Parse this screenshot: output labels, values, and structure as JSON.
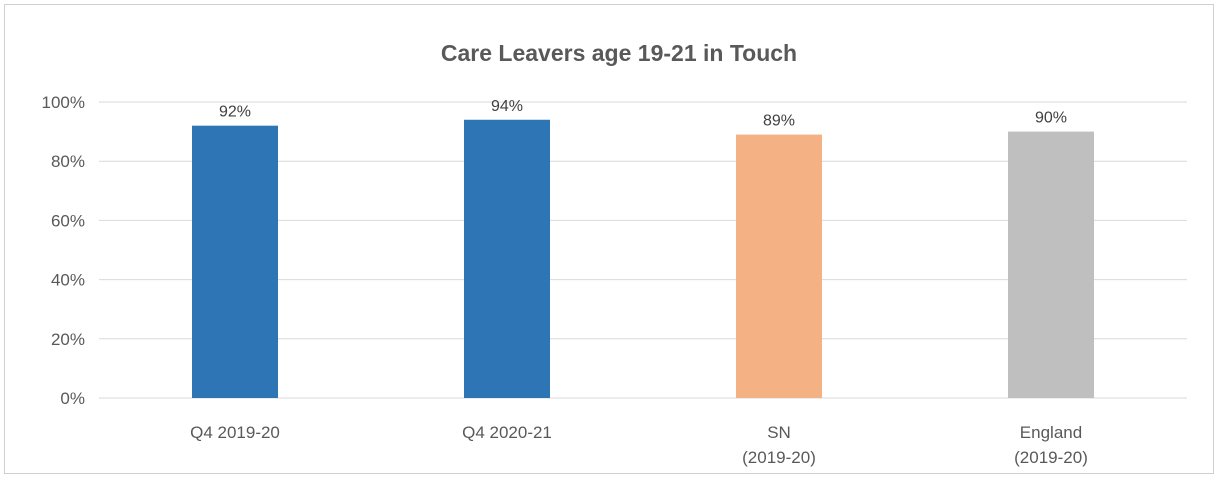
{
  "chart_data": {
    "type": "bar",
    "title": "Care Leavers age 19-21 in Touch",
    "categories": [
      [
        "Q4 2019-20"
      ],
      [
        "Q4 2020-21"
      ],
      [
        "SN",
        "(2019-20)"
      ],
      [
        "England",
        "(2019-20)"
      ]
    ],
    "values": [
      92,
      94,
      89,
      90
    ],
    "data_labels": [
      "92%",
      "94%",
      "89%",
      "90%"
    ],
    "colors": [
      "#2E75B6",
      "#2E75B6",
      "#F4B183",
      "#BFBFBF"
    ],
    "ylim": [
      0,
      100
    ],
    "yticks": [
      0,
      20,
      40,
      60,
      80,
      100
    ],
    "ytick_labels": [
      "0%",
      "20%",
      "40%",
      "60%",
      "80%",
      "100%"
    ],
    "grid": true,
    "legend": "none",
    "xlabel": "",
    "ylabel": ""
  }
}
